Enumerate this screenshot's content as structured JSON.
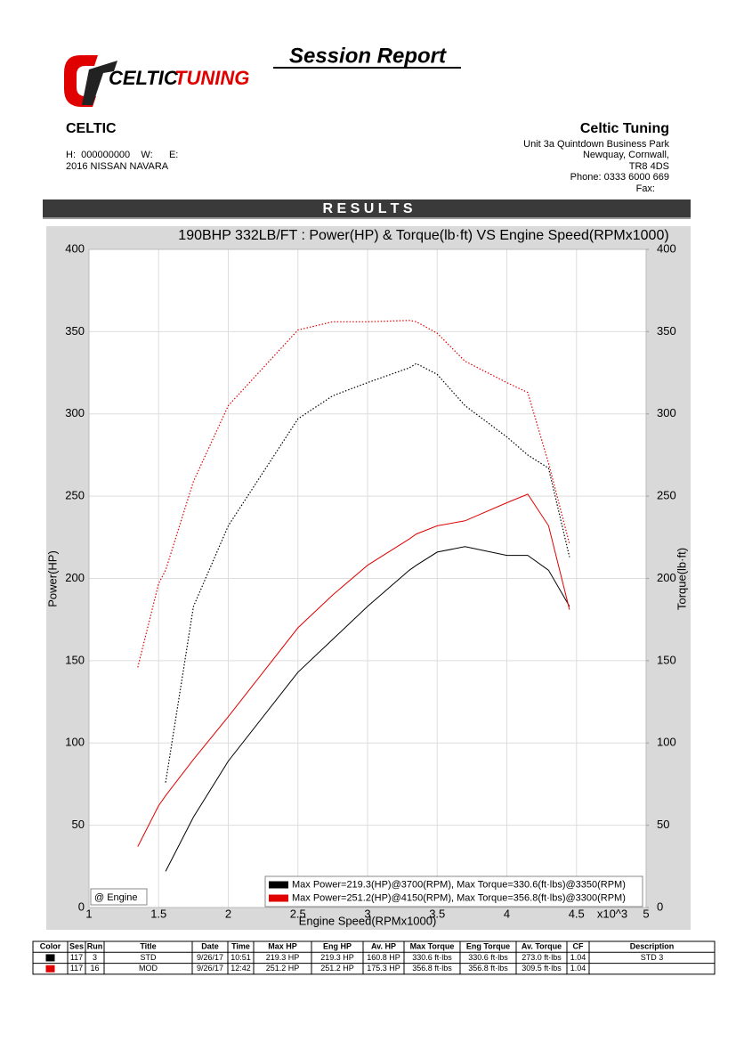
{
  "header": {
    "logo": [
      "CELTIC",
      "TUNING"
    ],
    "title": "Session Report",
    "customer": {
      "name": "CELTIC",
      "contact": "H:  000000000    W:      E:",
      "vehicle": "2016 NISSAN NAVARA"
    },
    "company": {
      "name": "Celtic Tuning",
      "address": [
        "Unit 3a Quintdown Business Park",
        "Newquay, Cornwall,",
        "TR8 4DS"
      ],
      "phone": "Phone: 0333 6000 669",
      "fax": "Fax:"
    }
  },
  "section_title": "R E S U L T S",
  "chart_data": {
    "type": "line",
    "title": "190BHP 332LB/FT : Power(HP) & Torque(lb·ft) VS Engine Speed(RPMx1000)",
    "x_label": "Engine Speed(RPMx1000)",
    "x_multiplier": "x10^3",
    "y_label": "Power(HP)",
    "y2_label": "Torque(lb·ft)",
    "annotation": "@ Engine",
    "x": [
      1.35,
      1.5,
      1.55,
      1.75,
      2,
      2.5,
      2.75,
      3,
      3.3,
      3.35,
      3.5,
      3.7,
      4,
      4.15,
      4.3,
      4.45
    ],
    "xlim": [
      1,
      5
    ],
    "xticks": [
      1,
      1.5,
      2,
      2.5,
      3,
      3.5,
      4,
      4.5,
      5
    ],
    "ylim": [
      0,
      400
    ],
    "yticks": [
      0,
      50,
      100,
      150,
      200,
      250,
      300,
      350,
      400
    ],
    "y2lim": [
      0,
      400
    ],
    "y2ticks": [
      0,
      50,
      100,
      150,
      200,
      250,
      300,
      350,
      400
    ],
    "grid": true,
    "legend": "lower right",
    "series": [
      {
        "name": "Max Power=219.3(HP)@3700(RPM), Max Torque=330.6(ft·lbs)@3350(RPM)",
        "color": "#000000",
        "line_style": "solid",
        "values": [
          null,
          null,
          22,
          55,
          89,
          143,
          163,
          183,
          205,
          208,
          216,
          219.3,
          214,
          214,
          205,
          183
        ]
      },
      {
        "name": "Max Power=251.2(HP)@4150(RPM), Max Torque=356.8(ft·lbs)@3300(RPM)",
        "color": "#e00000",
        "line_style": "solid",
        "values": [
          37,
          62,
          68,
          90,
          116,
          170,
          190,
          208,
          224,
          227,
          232,
          235,
          246,
          251.2,
          232,
          181
        ]
      },
      {
        "color": "#000000",
        "line_style": "dotted",
        "axis": "y2",
        "values": [
          null,
          null,
          76,
          183,
          232,
          297,
          311,
          319,
          328,
          330.6,
          324,
          305,
          286,
          275,
          267,
          213
        ]
      },
      {
        "color": "#e00000",
        "line_style": "dotted",
        "axis": "y2",
        "values": [
          146,
          197,
          205,
          259,
          305,
          351,
          356,
          356,
          356.8,
          356,
          349,
          332,
          319,
          313,
          270,
          221
        ]
      }
    ]
  },
  "table": {
    "columns": [
      "Color",
      "Ses",
      "Run",
      "Title",
      "Date",
      "Time",
      "Max HP",
      "Eng HP",
      "Av. HP",
      "Max Torque",
      "Eng Torque",
      "Av. Torque",
      "CF",
      "Description"
    ],
    "rows": [
      {
        "color": "#000000",
        "cells": [
          "117",
          "3",
          "STD",
          "9/26/17",
          "10:51",
          "219.3 HP",
          "219.3 HP",
          "160.8 HP",
          "330.6 ft·lbs",
          "330.6 ft·lbs",
          "273.0 ft·lbs",
          "1.04",
          "STD 3"
        ]
      },
      {
        "color": "#e00000",
        "cells": [
          "117",
          "16",
          "MOD",
          "9/26/17",
          "12:42",
          "251.2 HP",
          "251.2 HP",
          "175.3 HP",
          "356.8 ft·lbs",
          "356.8 ft·lbs",
          "309.5 ft·lbs",
          "1.04",
          ""
        ]
      }
    ]
  }
}
